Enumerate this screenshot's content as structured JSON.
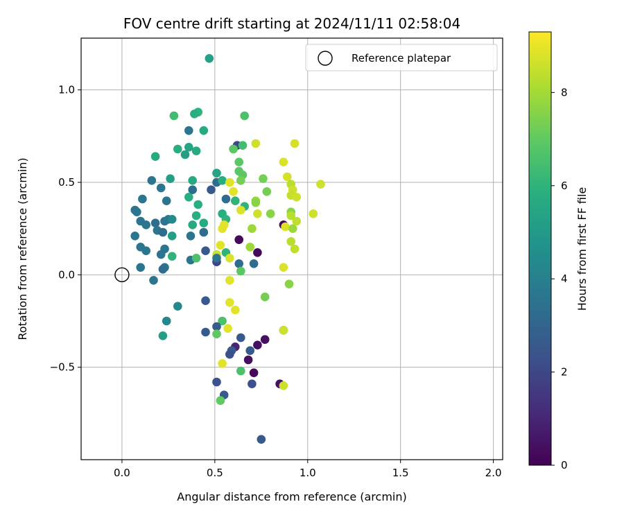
{
  "chart_data": {
    "type": "scatter",
    "title": "FOV centre drift starting at 2024/11/11 02:58:04",
    "xlabel": "Angular distance from reference (arcmin)",
    "ylabel": "Rotation from reference (arcmin)",
    "xlim": [
      -0.22,
      2.05
    ],
    "ylim": [
      -1.0,
      1.28
    ],
    "xticks": [
      0.0,
      0.5,
      1.0,
      1.5,
      2.0
    ],
    "xtick_labels": [
      "0.0",
      "0.5",
      "1.0",
      "1.5",
      "2.0"
    ],
    "yticks": [
      -0.5,
      0.0,
      0.5,
      1.0
    ],
    "ytick_labels": [
      "−0.5",
      "0.0",
      "0.5",
      "1.0"
    ],
    "grid": true,
    "legend": {
      "label": "Reference platepar",
      "placement": "top-right"
    },
    "reference_point": {
      "x": 0.0,
      "y": 0.0
    },
    "colorbar": {
      "label": "Hours from first FF file",
      "range": [
        0,
        9.3
      ],
      "ticks": [
        0,
        2,
        4,
        6,
        8
      ],
      "tick_labels": [
        "0",
        "2",
        "4",
        "6",
        "8"
      ],
      "colormap": "viridis"
    },
    "points": [
      [
        0.47,
        1.17,
        5.3
      ],
      [
        0.41,
        0.88,
        6.0
      ],
      [
        0.39,
        0.87,
        5.8
      ],
      [
        0.28,
        0.86,
        6.4
      ],
      [
        0.66,
        0.86,
        6.6
      ],
      [
        0.44,
        0.78,
        5.6
      ],
      [
        0.36,
        0.78,
        3.6
      ],
      [
        0.62,
        0.7,
        2.0
      ],
      [
        0.6,
        0.68,
        6.9
      ],
      [
        0.65,
        0.7,
        6.4
      ],
      [
        0.72,
        0.71,
        8.6
      ],
      [
        0.93,
        0.71,
        8.7
      ],
      [
        0.3,
        0.68,
        5.8
      ],
      [
        0.36,
        0.69,
        5.4
      ],
      [
        0.4,
        0.67,
        5.6
      ],
      [
        0.34,
        0.65,
        5.2
      ],
      [
        0.18,
        0.64,
        5.6
      ],
      [
        0.63,
        0.61,
        6.9
      ],
      [
        0.87,
        0.61,
        8.8
      ],
      [
        0.51,
        0.55,
        5.4
      ],
      [
        0.63,
        0.56,
        6.9
      ],
      [
        0.65,
        0.54,
        6.9
      ],
      [
        0.89,
        0.53,
        8.7
      ],
      [
        0.26,
        0.52,
        5.2
      ],
      [
        0.16,
        0.51,
        3.6
      ],
      [
        0.38,
        0.51,
        5.6
      ],
      [
        0.51,
        0.5,
        3.3
      ],
      [
        0.54,
        0.51,
        5.8
      ],
      [
        0.58,
        0.5,
        8.9
      ],
      [
        0.64,
        0.51,
        7.3
      ],
      [
        0.76,
        0.52,
        7.3
      ],
      [
        1.07,
        0.49,
        8.6
      ],
      [
        0.91,
        0.49,
        8.3
      ],
      [
        0.21,
        0.47,
        3.6
      ],
      [
        0.38,
        0.46,
        3.3
      ],
      [
        0.48,
        0.46,
        2.6
      ],
      [
        0.92,
        0.46,
        8.6
      ],
      [
        0.6,
        0.45,
        8.9
      ],
      [
        0.78,
        0.45,
        7.3
      ],
      [
        0.91,
        0.43,
        8.5
      ],
      [
        0.94,
        0.42,
        8.6
      ],
      [
        0.36,
        0.42,
        5.8
      ],
      [
        0.56,
        0.41,
        3.3
      ],
      [
        0.61,
        0.4,
        6.0
      ],
      [
        0.72,
        0.4,
        7.9
      ],
      [
        0.11,
        0.41,
        3.6
      ],
      [
        0.24,
        0.4,
        3.6
      ],
      [
        0.41,
        0.38,
        5.8
      ],
      [
        0.66,
        0.37,
        6.0
      ],
      [
        0.72,
        0.39,
        7.6
      ],
      [
        0.07,
        0.35,
        3.6
      ],
      [
        0.08,
        0.34,
        3.6
      ],
      [
        0.64,
        0.35,
        8.8
      ],
      [
        0.8,
        0.33,
        7.6
      ],
      [
        0.73,
        0.33,
        8.6
      ],
      [
        0.54,
        0.33,
        5.8
      ],
      [
        0.4,
        0.32,
        5.8
      ],
      [
        1.03,
        0.33,
        8.6
      ],
      [
        0.91,
        0.34,
        7.6
      ],
      [
        0.91,
        0.32,
        8.3
      ],
      [
        0.1,
        0.29,
        3.6
      ],
      [
        0.18,
        0.28,
        3.3
      ],
      [
        0.23,
        0.29,
        3.6
      ],
      [
        0.25,
        0.3,
        3.6
      ],
      [
        0.27,
        0.3,
        4.3
      ],
      [
        0.13,
        0.27,
        3.6
      ],
      [
        0.38,
        0.27,
        5.6
      ],
      [
        0.44,
        0.28,
        5.6
      ],
      [
        0.56,
        0.3,
        6.0
      ],
      [
        0.55,
        0.27,
        8.9
      ],
      [
        0.54,
        0.25,
        8.9
      ],
      [
        0.94,
        0.29,
        8.4
      ],
      [
        0.87,
        0.27,
        0.2
      ],
      [
        0.88,
        0.26,
        8.8
      ],
      [
        0.92,
        0.25,
        7.9
      ],
      [
        0.7,
        0.25,
        7.9
      ],
      [
        0.19,
        0.24,
        3.6
      ],
      [
        0.22,
        0.23,
        3.3
      ],
      [
        0.27,
        0.21,
        5.2
      ],
      [
        0.37,
        0.21,
        3.6
      ],
      [
        0.44,
        0.23,
        3.3
      ],
      [
        0.07,
        0.21,
        3.6
      ],
      [
        0.63,
        0.19,
        0.2
      ],
      [
        0.91,
        0.18,
        8.3
      ],
      [
        0.93,
        0.14,
        8.4
      ],
      [
        0.1,
        0.15,
        3.6
      ],
      [
        0.13,
        0.13,
        3.6
      ],
      [
        0.23,
        0.14,
        3.6
      ],
      [
        0.21,
        0.11,
        3.6
      ],
      [
        0.45,
        0.13,
        2.6
      ],
      [
        0.53,
        0.16,
        8.9
      ],
      [
        0.69,
        0.15,
        7.9
      ],
      [
        0.73,
        0.12,
        0.2
      ],
      [
        0.56,
        0.12,
        6.0
      ],
      [
        0.51,
        0.11,
        8.6
      ],
      [
        0.27,
        0.1,
        6.0
      ],
      [
        0.37,
        0.08,
        3.6
      ],
      [
        0.4,
        0.09,
        6.6
      ],
      [
        0.58,
        0.09,
        8.8
      ],
      [
        0.51,
        0.07,
        2.0
      ],
      [
        0.51,
        0.09,
        3.6
      ],
      [
        0.63,
        0.06,
        3.3
      ],
      [
        0.71,
        0.06,
        3.3
      ],
      [
        0.87,
        0.04,
        8.8
      ],
      [
        0.1,
        0.04,
        3.6
      ],
      [
        0.23,
        0.04,
        3.6
      ],
      [
        0.22,
        0.03,
        3.3
      ],
      [
        0.64,
        0.02,
        6.9
      ],
      [
        0.17,
        -0.03,
        3.6
      ],
      [
        0.58,
        -0.03,
        8.9
      ],
      [
        0.9,
        -0.05,
        7.6
      ],
      [
        0.45,
        -0.14,
        2.6
      ],
      [
        0.58,
        -0.15,
        8.9
      ],
      [
        0.77,
        -0.12,
        7.3
      ],
      [
        0.61,
        -0.19,
        8.9
      ],
      [
        0.3,
        -0.17,
        4.3
      ],
      [
        0.24,
        -0.25,
        4.3
      ],
      [
        0.54,
        -0.25,
        6.6
      ],
      [
        0.51,
        -0.28,
        2.6
      ],
      [
        0.57,
        -0.29,
        8.9
      ],
      [
        0.87,
        -0.3,
        3.6
      ],
      [
        0.87,
        -0.3,
        8.6
      ],
      [
        0.45,
        -0.31,
        2.6
      ],
      [
        0.51,
        -0.32,
        7.0
      ],
      [
        0.22,
        -0.33,
        5.2
      ],
      [
        0.64,
        -0.34,
        2.6
      ],
      [
        0.77,
        -0.35,
        0.4
      ],
      [
        0.61,
        -0.39,
        1.0
      ],
      [
        0.73,
        -0.38,
        0.4
      ],
      [
        0.59,
        -0.41,
        2.6
      ],
      [
        0.69,
        -0.41,
        2.6
      ],
      [
        0.58,
        -0.43,
        2.3
      ],
      [
        0.68,
        -0.46,
        0.4
      ],
      [
        0.54,
        -0.48,
        8.9
      ],
      [
        0.71,
        -0.53,
        0.2
      ],
      [
        0.64,
        -0.52,
        6.6
      ],
      [
        0.51,
        -0.58,
        2.3
      ],
      [
        0.7,
        -0.59,
        2.3
      ],
      [
        0.85,
        -0.59,
        0.4
      ],
      [
        0.87,
        -0.6,
        8.6
      ],
      [
        0.55,
        -0.65,
        2.6
      ],
      [
        0.53,
        -0.68,
        7.0
      ],
      [
        0.75,
        -0.89,
        2.6
      ]
    ]
  }
}
